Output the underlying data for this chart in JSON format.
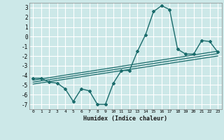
{
  "title": "",
  "xlabel": "Humidex (Indice chaleur)",
  "ylabel": "",
  "background_color": "#cce8e8",
  "grid_color": "#aacccc",
  "line_color": "#1a6b6b",
  "xlim": [
    -0.5,
    23.5
  ],
  "ylim": [
    -7.5,
    3.5
  ],
  "yticks": [
    3,
    2,
    1,
    0,
    -1,
    -2,
    -3,
    -4,
    -5,
    -6,
    -7
  ],
  "xticks": [
    0,
    1,
    2,
    3,
    4,
    5,
    6,
    7,
    8,
    9,
    10,
    11,
    12,
    13,
    14,
    15,
    16,
    17,
    18,
    19,
    20,
    21,
    22,
    23
  ],
  "xtick_labels": [
    "0",
    "1",
    "2",
    "3",
    "4",
    "5",
    "6",
    "7",
    "8",
    "9",
    "10",
    "11",
    "12",
    "13",
    "14",
    "15",
    "16",
    "17",
    "18",
    "19",
    "20",
    "21",
    "22",
    "23"
  ],
  "main_line_x": [
    0,
    1,
    2,
    3,
    4,
    5,
    6,
    7,
    8,
    9,
    10,
    11,
    12,
    13,
    14,
    15,
    16,
    17,
    18,
    19,
    20,
    21,
    22,
    23
  ],
  "main_line_y": [
    -4.3,
    -4.3,
    -4.7,
    -4.8,
    -5.4,
    -6.7,
    -5.4,
    -5.6,
    -7.0,
    -7.0,
    -4.8,
    -3.5,
    -3.5,
    -1.5,
    0.2,
    2.6,
    3.2,
    2.8,
    -1.3,
    -1.8,
    -1.8,
    -0.4,
    -0.5,
    -1.6
  ],
  "trend_lines": [
    {
      "x": [
        0,
        23
      ],
      "y": [
        -4.5,
        -1.5
      ]
    },
    {
      "x": [
        0,
        23
      ],
      "y": [
        -4.7,
        -1.75
      ]
    },
    {
      "x": [
        0,
        23
      ],
      "y": [
        -4.9,
        -2.0
      ]
    }
  ]
}
